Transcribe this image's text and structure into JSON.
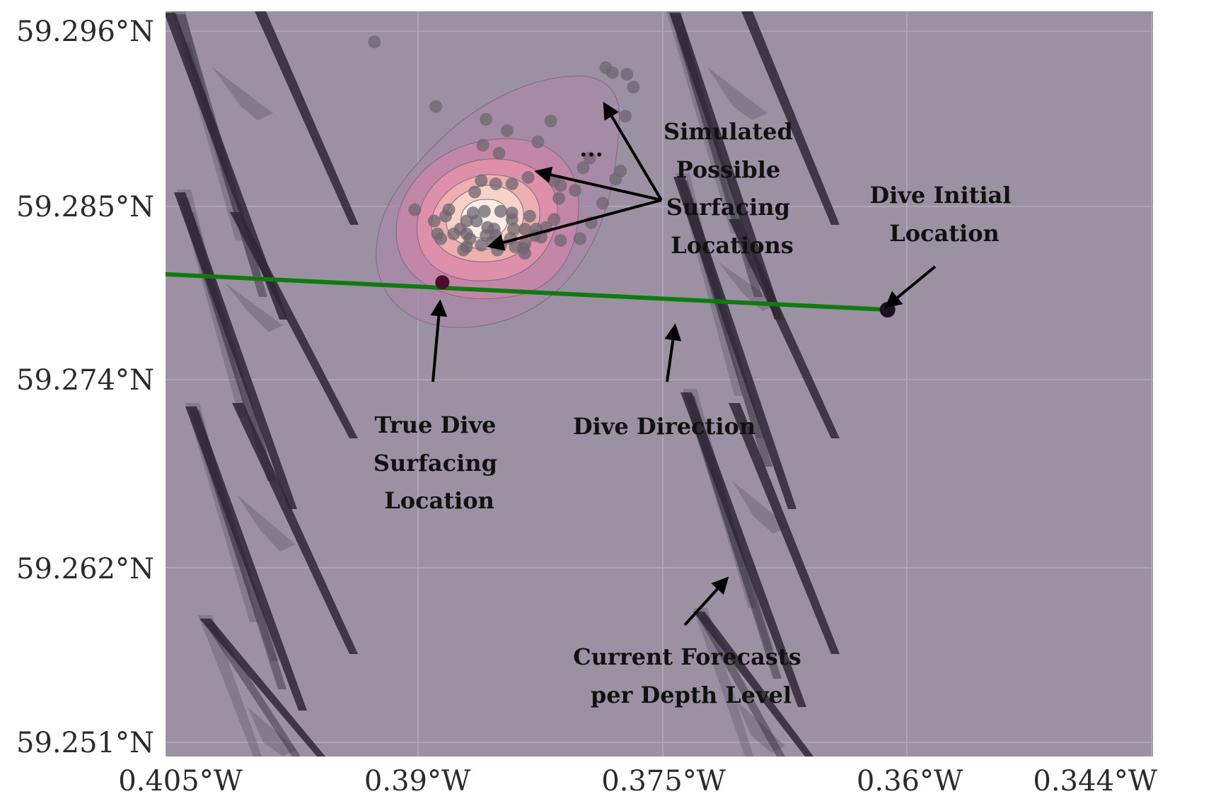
{
  "colors": {
    "background": "#9b91a3",
    "grid": "#b3aabb",
    "dive_track": "#0f7a0f",
    "current_arrow": "#2f2736",
    "simulated_point": "#6e6670",
    "true_surfacing": "#4a0f2c",
    "initial_location": "#1a1020",
    "annotation": "#000000",
    "kde_levels": [
      "#a98aa8",
      "#c585a8",
      "#e190a8",
      "#f0b3b0",
      "#f7d6cc",
      "#fbefe8"
    ]
  },
  "axes": {
    "x_ticks": [
      "0.405°W",
      "0.39°W",
      "0.375°W",
      "0.36°W",
      "0.344°W"
    ],
    "y_ticks": [
      "59.296°N",
      "59.285°N",
      "59.274°N",
      "59.262°N",
      "59.251°N"
    ]
  },
  "annotations": {
    "simulated": [
      "Simulated",
      "Possible",
      "Surfacing",
      "Locations"
    ],
    "ellipsis": "...",
    "initial": [
      "Dive Initial",
      "Location"
    ],
    "true_surfacing": [
      "True Dive",
      "Surfacing",
      "Location"
    ],
    "direction": [
      "Dive Direction"
    ],
    "currents": [
      "Current Forecasts",
      "per Depth Level"
    ]
  },
  "chart_data": {
    "type": "map",
    "x_range": [
      -0.405,
      -0.344
    ],
    "y_range": [
      59.2507,
      59.2969
    ],
    "grid": true,
    "dive_track": {
      "x": [
        -0.405,
        -0.3604
      ],
      "y": [
        59.2806,
        59.2784
      ]
    },
    "initial_location": {
      "x": -0.3604,
      "y": 59.2784
    },
    "true_surfacing_location": {
      "x": -0.3879,
      "y": 59.2801
    },
    "simulated_surfacing_points": [
      {
        "x": -0.3921,
        "y": 59.295
      },
      {
        "x": -0.3778,
        "y": 59.2934
      },
      {
        "x": -0.3774,
        "y": 59.2931
      },
      {
        "x": -0.3765,
        "y": 59.293
      },
      {
        "x": -0.3761,
        "y": 59.2922
      },
      {
        "x": -0.3883,
        "y": 59.291
      },
      {
        "x": -0.3766,
        "y": 59.2904
      },
      {
        "x": -0.3852,
        "y": 59.2902
      },
      {
        "x": -0.3812,
        "y": 59.2901
      },
      {
        "x": -0.3839,
        "y": 59.2895
      },
      {
        "x": -0.382,
        "y": 59.2888
      },
      {
        "x": -0.3854,
        "y": 59.2886
      },
      {
        "x": -0.3844,
        "y": 59.2881
      },
      {
        "x": -0.3788,
        "y": 59.2878
      },
      {
        "x": -0.3792,
        "y": 59.2872
      },
      {
        "x": -0.3769,
        "y": 59.287
      },
      {
        "x": -0.3772,
        "y": 59.2865
      },
      {
        "x": -0.3826,
        "y": 59.2866
      },
      {
        "x": -0.381,
        "y": 59.2864
      },
      {
        "x": -0.3855,
        "y": 59.2864
      },
      {
        "x": -0.3846,
        "y": 59.2862
      },
      {
        "x": -0.3836,
        "y": 59.2862
      },
      {
        "x": -0.3806,
        "y": 59.2861
      },
      {
        "x": -0.3797,
        "y": 59.2858
      },
      {
        "x": -0.3859,
        "y": 59.2857
      },
      {
        "x": -0.3807,
        "y": 59.2853
      },
      {
        "x": -0.378,
        "y": 59.285
      },
      {
        "x": -0.3896,
        "y": 59.2846
      },
      {
        "x": -0.3875,
        "y": 59.2846
      },
      {
        "x": -0.3853,
        "y": 59.2845
      },
      {
        "x": -0.386,
        "y": 59.2844
      },
      {
        "x": -0.3843,
        "y": 59.2845
      },
      {
        "x": -0.3836,
        "y": 59.2844
      },
      {
        "x": -0.3877,
        "y": 59.2842
      },
      {
        "x": -0.3884,
        "y": 59.2839
      },
      {
        "x": -0.3836,
        "y": 59.284
      },
      {
        "x": -0.3864,
        "y": 59.2839
      },
      {
        "x": -0.3858,
        "y": 59.2839
      },
      {
        "x": -0.3825,
        "y": 59.2842
      },
      {
        "x": -0.381,
        "y": 59.284
      },
      {
        "x": -0.3787,
        "y": 59.2838
      },
      {
        "x": -0.3851,
        "y": 59.2835
      },
      {
        "x": -0.3868,
        "y": 59.2834
      },
      {
        "x": -0.3847,
        "y": 59.2834
      },
      {
        "x": -0.3835,
        "y": 59.2834
      },
      {
        "x": -0.3828,
        "y": 59.2834
      },
      {
        "x": -0.3821,
        "y": 59.2834
      },
      {
        "x": -0.3815,
        "y": 59.2835
      },
      {
        "x": -0.3882,
        "y": 59.2831
      },
      {
        "x": -0.3872,
        "y": 59.2831
      },
      {
        "x": -0.3864,
        "y": 59.2831
      },
      {
        "x": -0.388,
        "y": 59.2828
      },
      {
        "x": -0.3852,
        "y": 59.283
      },
      {
        "x": -0.3846,
        "y": 59.283
      },
      {
        "x": -0.3822,
        "y": 59.283
      },
      {
        "x": -0.3818,
        "y": 59.2829
      },
      {
        "x": -0.3862,
        "y": 59.2828
      },
      {
        "x": -0.3837,
        "y": 59.2828
      },
      {
        "x": -0.3848,
        "y": 59.2826
      },
      {
        "x": -0.3828,
        "y": 59.2825
      },
      {
        "x": -0.3806,
        "y": 59.2827
      },
      {
        "x": -0.3794,
        "y": 59.2828
      },
      {
        "x": -0.3855,
        "y": 59.2824
      },
      {
        "x": -0.3843,
        "y": 59.2824
      },
      {
        "x": -0.3834,
        "y": 59.2823
      },
      {
        "x": -0.3864,
        "y": 59.2823
      },
      {
        "x": -0.3866,
        "y": 59.2821
      },
      {
        "x": -0.3845,
        "y": 59.2821
      },
      {
        "x": -0.3829,
        "y": 59.2822
      },
      {
        "x": -0.3828,
        "y": 59.2819
      }
    ],
    "current_forecasts": "arrows per depth level, oriented roughly north-northwest"
  }
}
